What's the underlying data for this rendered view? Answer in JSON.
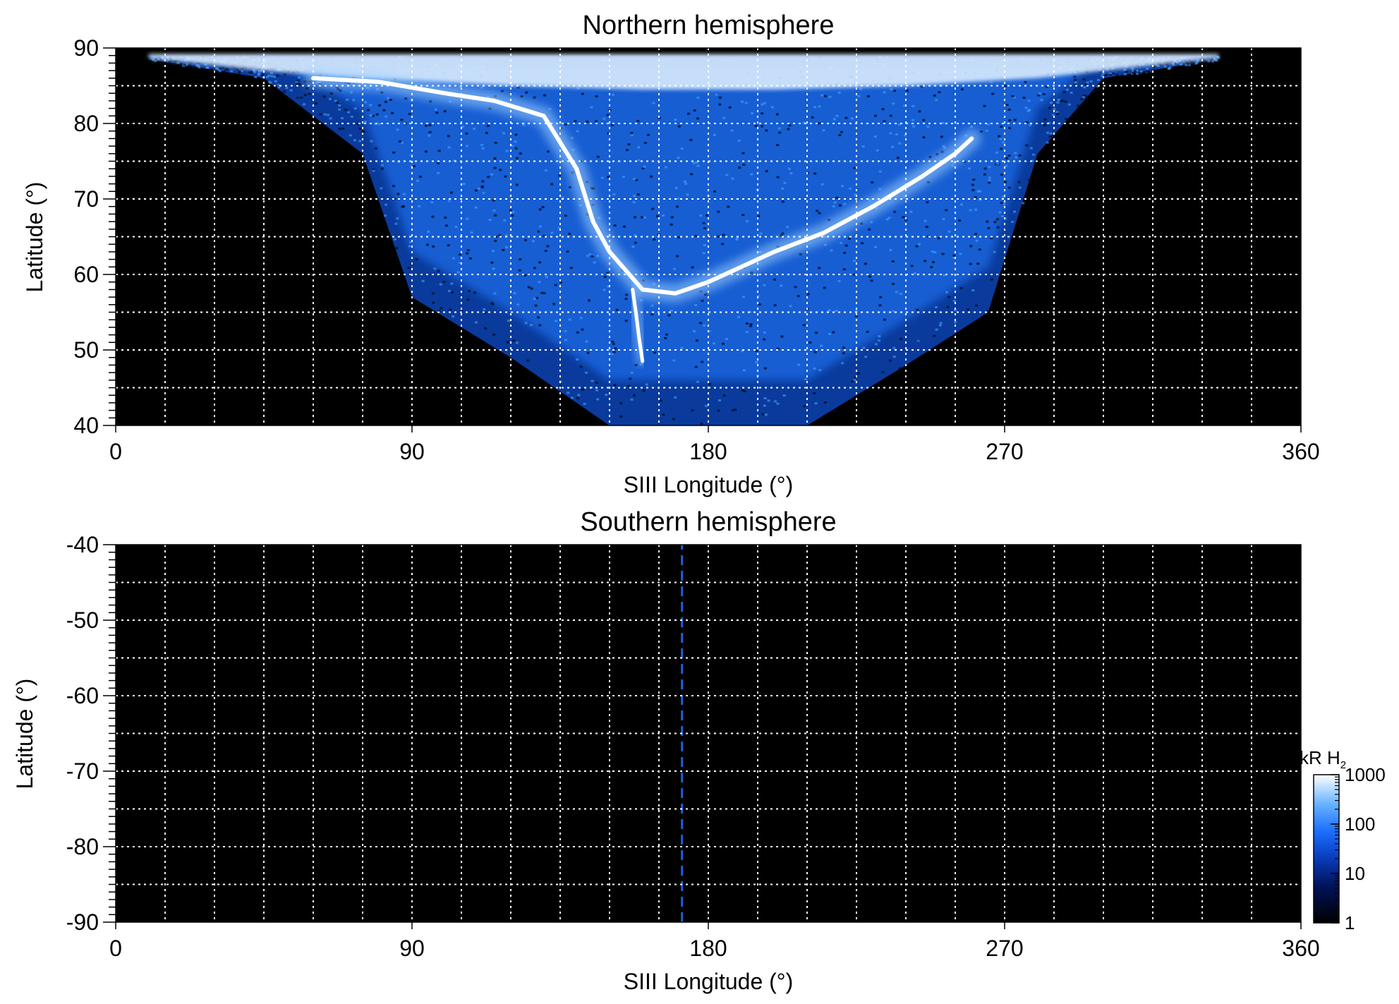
{
  "chart_data": [
    {
      "type": "heatmap",
      "title": "Northern hemisphere",
      "xlabel": "SIII Longitude (°)",
      "ylabel": "Latitude (°)",
      "xlim": [
        0,
        360
      ],
      "ylim": [
        40,
        90
      ],
      "xticks": [
        "0",
        "90",
        "180",
        "270",
        "360"
      ],
      "yticks": [
        "40",
        "50",
        "60",
        "70",
        "80",
        "90"
      ],
      "x_tick_values": [
        0,
        90,
        180,
        270,
        360
      ],
      "y_tick_values": [
        40,
        50,
        60,
        70,
        80,
        90
      ],
      "grid": true,
      "grid_style": "dotted white, every 15° longitude and 5° latitude",
      "background": "#000000",
      "coverage": {
        "description_longitudes": [
          10,
          45,
          75,
          90,
          120,
          150,
          170,
          190,
          210,
          240,
          265,
          280,
          300,
          335
        ],
        "max_latitude": 89,
        "min_latitude": [
          88.5,
          86,
          76,
          57,
          49,
          40,
          40,
          40,
          40,
          48,
          55,
          76,
          86,
          88.5
        ]
      },
      "features": [
        {
          "name": "main auroral oval",
          "lon": [
            60,
            80,
            100,
            115,
            130,
            140,
            145,
            150,
            160,
            170,
            180,
            190,
            200,
            215,
            230,
            245,
            255,
            260
          ],
          "lat": [
            86,
            85.5,
            84,
            83,
            81,
            74,
            67,
            63,
            58,
            57.5,
            59,
            61,
            63,
            65.5,
            69,
            73,
            76,
            78
          ]
        },
        {
          "name": "footprint spur",
          "lon": [
            157,
            158,
            159,
            160
          ],
          "lat": [
            58,
            55,
            51.5,
            48.5
          ]
        }
      ]
    },
    {
      "type": "heatmap",
      "title": "Southern hemisphere",
      "xlabel": "SIII Longitude (°)",
      "ylabel": "Latitude (°)",
      "xlim": [
        0,
        360
      ],
      "ylim": [
        -90,
        -40
      ],
      "xticks": [
        "0",
        "90",
        "180",
        "270",
        "360"
      ],
      "yticks": [
        "-90",
        "-80",
        "-70",
        "-60",
        "-50",
        "-40"
      ],
      "x_tick_values": [
        0,
        90,
        180,
        270,
        360
      ],
      "y_tick_values": [
        -90,
        -80,
        -70,
        -60,
        -50,
        -40
      ],
      "grid": true,
      "grid_style": "dotted white, every 15° longitude and 5° latitude",
      "background": "#000000",
      "features": [
        {
          "name": "dashed blue line",
          "lon": 172,
          "lat_range": [
            -90,
            -40
          ],
          "color": "#1f5fd6"
        }
      ]
    }
  ],
  "colorbar": {
    "title": "kR H",
    "title_subscript": "2",
    "scale": "log",
    "range": [
      1,
      1000
    ],
    "tick_labels": [
      "1",
      "10",
      "100",
      "1000"
    ],
    "tick_values": [
      1,
      10,
      100,
      1000
    ],
    "placement": "bottom-right",
    "colors": [
      "#000000",
      "#001a6e",
      "#0050d0",
      "#2e8fff",
      "#9fd0ff",
      "#ffffff"
    ]
  }
}
